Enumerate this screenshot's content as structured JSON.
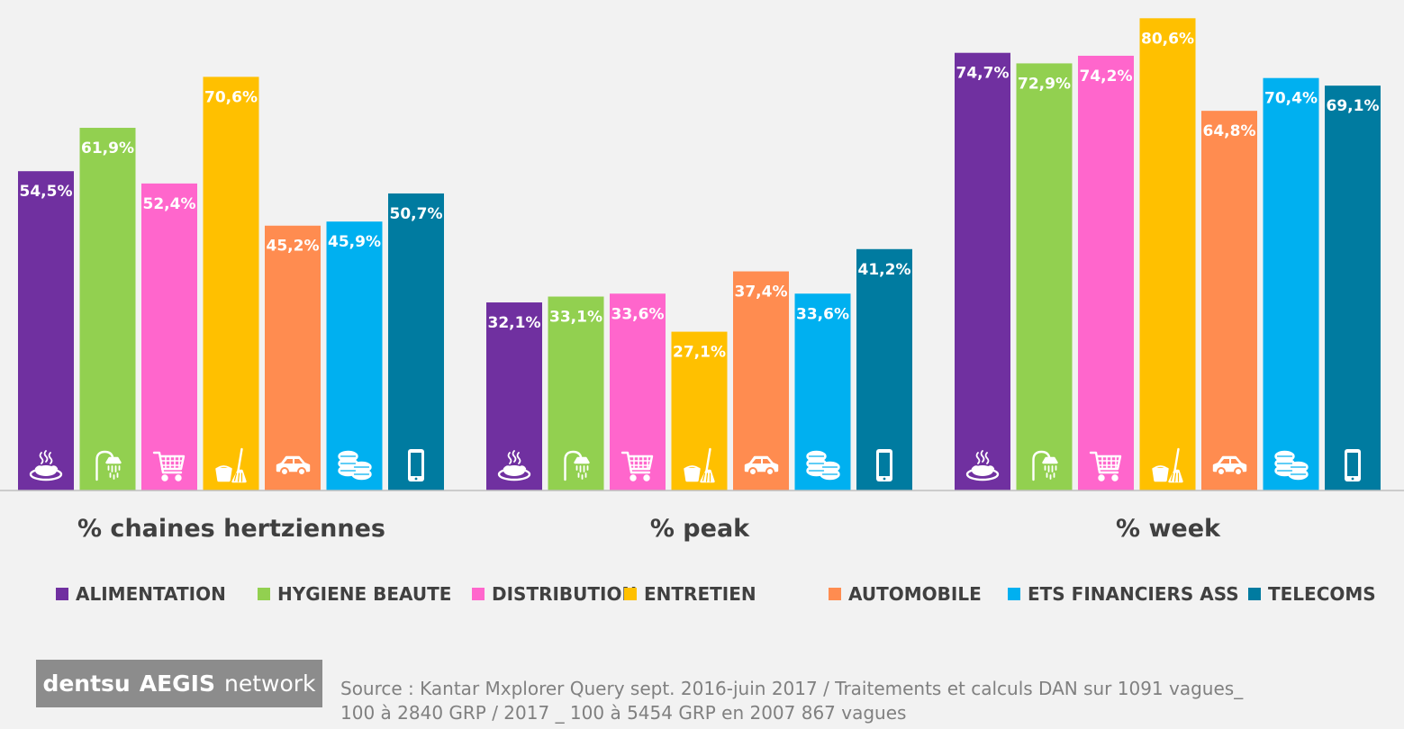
{
  "chart_data": {
    "type": "bar",
    "groups": [
      "% chaines hertziennes",
      "% peak",
      "% week"
    ],
    "series": [
      {
        "name": "ALIMENTATION",
        "color": "#7030a0",
        "icon": "food-plate-icon",
        "values": [
          54.5,
          32.1,
          74.7
        ],
        "labels": [
          "54,5%",
          "32,1%",
          "74,7%"
        ]
      },
      {
        "name": "HYGIENE BEAUTE",
        "color": "#92d050",
        "icon": "shower-icon",
        "values": [
          61.9,
          33.1,
          72.9
        ],
        "labels": [
          "61,9%",
          "33,1%",
          "72,9%"
        ]
      },
      {
        "name": "DISTRIBUTION",
        "color": "#ff66cc",
        "icon": "shopping-cart-icon",
        "values": [
          52.4,
          33.6,
          74.2
        ],
        "labels": [
          "52,4%",
          "33,6%",
          "74,2%"
        ]
      },
      {
        "name": "ENTRETIEN",
        "color": "#ffc000",
        "icon": "bucket-broom-icon",
        "values": [
          70.6,
          27.1,
          80.6
        ],
        "labels": [
          "70,6%",
          "27,1%",
          "80,6%"
        ]
      },
      {
        "name": "AUTOMOBILE",
        "color": "#ff8c50",
        "icon": "car-icon",
        "values": [
          45.2,
          37.4,
          64.8
        ],
        "labels": [
          "45,2%",
          "37,4%",
          "64,8%"
        ]
      },
      {
        "name": "ETS FINANCIERS ASS",
        "color": "#00b0f0",
        "icon": "coins-icon",
        "values": [
          45.9,
          33.6,
          70.4
        ],
        "labels": [
          "45,9%",
          "33,6%",
          "70,4%"
        ]
      },
      {
        "name": "TELECOMS",
        "color": "#007ba0",
        "icon": "mobile-phone-icon",
        "values": [
          50.7,
          41.2,
          69.1
        ],
        "labels": [
          "50,7%",
          "41,2%",
          "69,1%"
        ]
      }
    ],
    "ylim": [
      0,
      82.5
    ],
    "grid": false,
    "legend_position": "bottom"
  },
  "logo": {
    "part1": "dentsu",
    "part2": "AEGIS",
    "part3": "network"
  },
  "source": {
    "line1": "Source :  Kantar Mxplorer Query sept. 2016-juin 2017 / Traitements et calculs DAN sur 1091 vagues_",
    "line2": "100 à 2840 GRP / 2017 _ 100 à 5454 GRP en 2007 867 vagues"
  }
}
